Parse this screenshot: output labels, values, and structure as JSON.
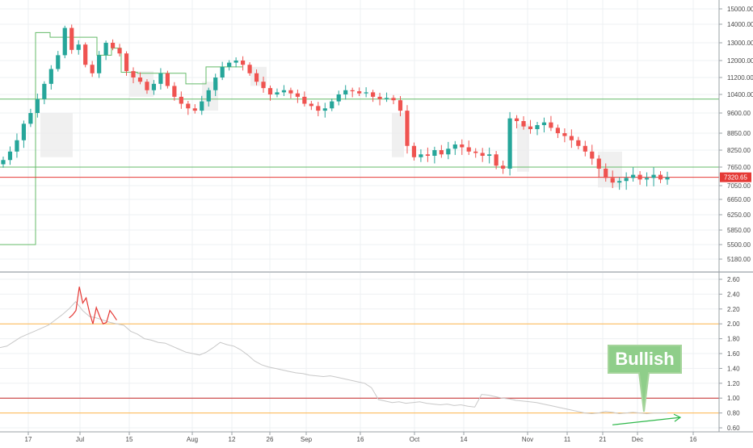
{
  "chart_data": [
    {
      "type": "candlestick",
      "title": "",
      "y_ticks": [
        "15000.00",
        "14000.00",
        "13000.00",
        "12000.00",
        "11200.00",
        "10400.00",
        "9600.00",
        "8850.00",
        "8250.00",
        "7650.00",
        "7050.00",
        "6650.00",
        "6250.00",
        "5850.00",
        "5500.00",
        "5180.00"
      ],
      "x_ticks": [
        "17",
        "Jul",
        "15",
        "Aug",
        "12",
        "26",
        "Sep",
        "16",
        "Oct",
        "14",
        "Nov",
        "11",
        "21",
        "Dec",
        "16"
      ],
      "last_price": "7320.65",
      "ylim": [
        5000,
        15000
      ],
      "colors": {
        "up": "#26a69a",
        "down": "#ef5350",
        "support": "#66bb6a",
        "price_line": "#e53935",
        "step_line": "#66bb6a"
      },
      "horizontal_levels": [
        {
          "value": 10200,
          "color": "#66bb6a"
        },
        {
          "value": 7650,
          "color": "#66bb6a"
        },
        {
          "value": 7320.65,
          "color": "#e53935"
        }
      ],
      "closes": [
        7900,
        8200,
        8600,
        9200,
        9600,
        10200,
        10900,
        11600,
        12300,
        13800,
        12600,
        12900,
        11800,
        11400,
        12300,
        13000,
        12700,
        12400,
        11500,
        11200,
        11000,
        10600,
        10900,
        11400,
        10800,
        10300,
        10000,
        9800,
        9700,
        10100,
        10600,
        11200,
        11700,
        11900,
        12000,
        11800,
        11400,
        11000,
        10700,
        10400,
        10500,
        10600,
        10450,
        10300,
        10000,
        9900,
        9700,
        9800,
        10100,
        10400,
        10600,
        10550,
        10450,
        10500,
        10300,
        10200,
        10250,
        10150,
        9700,
        8400,
        8000,
        8100,
        8050,
        8250,
        8100,
        8300,
        8450,
        8350,
        8200,
        8150,
        8050,
        8100,
        7700,
        7600,
        9400,
        9300,
        9100,
        9000,
        9150,
        9250,
        9050,
        8850,
        8750,
        8600,
        8400,
        8200,
        7950,
        7600,
        7300,
        7150,
        7200,
        7300,
        7400,
        7250,
        7300,
        7400,
        7250,
        7320.65
      ]
    },
    {
      "type": "line",
      "title": "",
      "y_ticks": [
        "2.60",
        "2.40",
        "2.20",
        "2.00",
        "1.80",
        "1.60",
        "1.40",
        "1.20",
        "1.00",
        "0.80",
        "0.60"
      ],
      "ylim": [
        0.55,
        2.65
      ],
      "levels": [
        {
          "value": 2.0,
          "color": "#ffb74d"
        },
        {
          "value": 1.0,
          "color": "#c62828"
        },
        {
          "value": 0.8,
          "color": "#ffb74d"
        }
      ],
      "series": [
        {
          "color": "#c8c8c8",
          "values": [
            1.68,
            1.7,
            1.76,
            1.82,
            1.86,
            1.9,
            1.94,
            1.98,
            2.05,
            2.12,
            2.2,
            2.3,
            2.18,
            2.1,
            2.08,
            2.05,
            2.02,
            2.0,
            1.98,
            1.9,
            1.86,
            1.8,
            1.78,
            1.75,
            1.74,
            1.7,
            1.66,
            1.62,
            1.6,
            1.58,
            1.62,
            1.68,
            1.75,
            1.72,
            1.7,
            1.65,
            1.58,
            1.5,
            1.45,
            1.42,
            1.4,
            1.38,
            1.36,
            1.34,
            1.33,
            1.31,
            1.3,
            1.29,
            1.3,
            1.28,
            1.26,
            1.24,
            1.22,
            1.2,
            1.14,
            0.98,
            0.96,
            0.94,
            0.95,
            0.93,
            0.94,
            0.95,
            0.93,
            0.92,
            0.91,
            0.92,
            0.9,
            0.91,
            0.89,
            0.88,
            1.05,
            1.04,
            1.02,
            1.0,
            0.99,
            0.97,
            0.96,
            0.95,
            0.94,
            0.92,
            0.9,
            0.88,
            0.86,
            0.84,
            0.82,
            0.8,
            0.79,
            0.8,
            0.82,
            0.81,
            0.79,
            0.8,
            0.81,
            0.8,
            0.79,
            0.8,
            0.8,
            0.8
          ]
        },
        {
          "color": "#e53935",
          "values": [
            null,
            null,
            null,
            null,
            null,
            null,
            null,
            null,
            2.08,
            2.12,
            2.18,
            2.5,
            2.28,
            2.35,
            2.15,
            2.0,
            2.22,
            2.1,
            2.0,
            2.02,
            2.18,
            2.12,
            2.05,
            null
          ]
        }
      ],
      "annotation": {
        "label": "Bullish",
        "bg": "#8fce8a",
        "text_color": "#ffffff"
      },
      "trend_arrow": {
        "color": "#2eb84a"
      }
    }
  ]
}
